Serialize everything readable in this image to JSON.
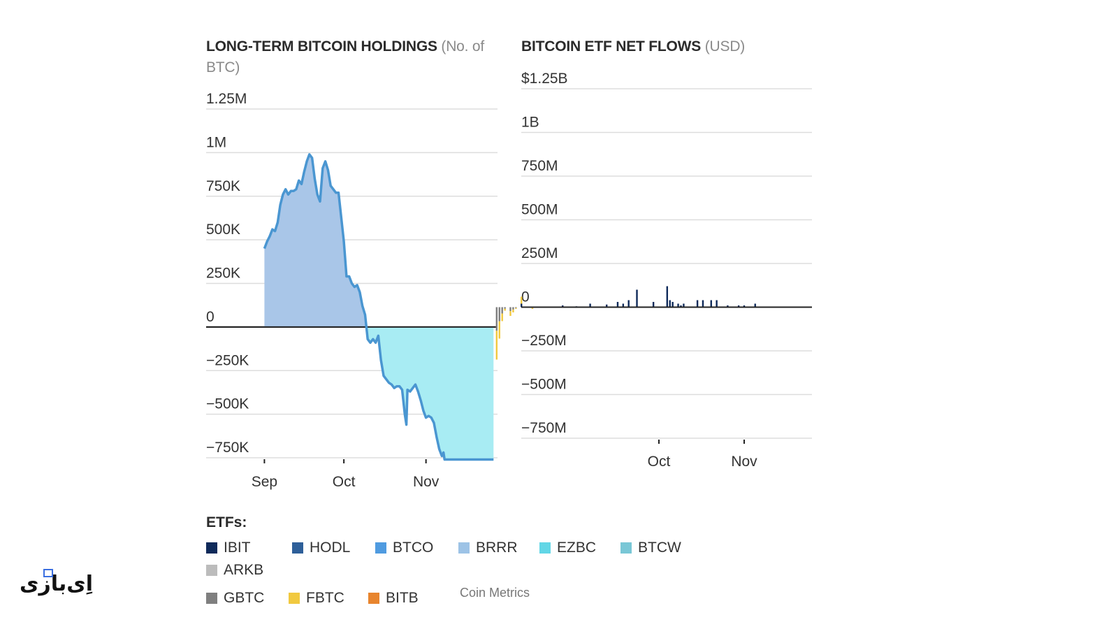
{
  "chart_data": [
    {
      "type": "area",
      "title": "LONG-TERM BITCOIN HOLDINGS",
      "unit": "(No. of BTC)",
      "y_ticks": [
        {
          "value": 1250000,
          "label": "1.25M"
        },
        {
          "value": 1000000,
          "label": "1M"
        },
        {
          "value": 750000,
          "label": "750K"
        },
        {
          "value": 500000,
          "label": "500K"
        },
        {
          "value": 250000,
          "label": "250K"
        },
        {
          "value": 0,
          "label": "0"
        },
        {
          "value": -250000,
          "label": "−250K"
        },
        {
          "value": -500000,
          "label": "−500K"
        },
        {
          "value": -750000,
          "label": "−750K"
        }
      ],
      "x_ticks": [
        {
          "day": 0,
          "label": "Sep"
        },
        {
          "day": 30,
          "label": "Oct"
        },
        {
          "day": 61,
          "label": "Nov"
        }
      ],
      "x_range": [
        -22,
        88
      ],
      "ylim": [
        -750000,
        1250000
      ],
      "positive_color": "#a9c6e8",
      "negative_color": "#a8ecf3",
      "line_color": "#4a96d1",
      "x": [
        0,
        1,
        2,
        3,
        4,
        5,
        6,
        7,
        8,
        9,
        10,
        11,
        12,
        13,
        14,
        15,
        16,
        17,
        18,
        19,
        20,
        21,
        22,
        23,
        24,
        25,
        26,
        27,
        28,
        29,
        30,
        31,
        32,
        33,
        34,
        35,
        36,
        37,
        38,
        39,
        40,
        41,
        42,
        43,
        44,
        45,
        46,
        47,
        48,
        49,
        50,
        51,
        52,
        53,
        53.6,
        54,
        55,
        56,
        57,
        58,
        59,
        60,
        61,
        62,
        63,
        64,
        65,
        66,
        66.5,
        67,
        67.6,
        68,
        69,
        70,
        71,
        72,
        73,
        74,
        75,
        76,
        77,
        78,
        79,
        80,
        81,
        82,
        83,
        84,
        84.3,
        84.8,
        85.5,
        86,
        86.5
      ],
      "y": [
        450000,
        490000,
        520000,
        560000,
        550000,
        600000,
        700000,
        760000,
        790000,
        760000,
        780000,
        780000,
        790000,
        840000,
        820000,
        890000,
        950000,
        990000,
        970000,
        850000,
        760000,
        720000,
        910000,
        950000,
        900000,
        810000,
        790000,
        770000,
        770000,
        630000,
        490000,
        290000,
        290000,
        250000,
        230000,
        240000,
        200000,
        120000,
        70000,
        -70000,
        -90000,
        -70000,
        -90000,
        -50000,
        -190000,
        -280000,
        -300000,
        -320000,
        -330000,
        -350000,
        -340000,
        -340000,
        -360000,
        -500000,
        -560000,
        -360000,
        -370000,
        -350000,
        -330000,
        -370000,
        -420000,
        -480000,
        -520000,
        -510000,
        -520000,
        -550000,
        -630000,
        -700000,
        -720000,
        -740000,
        -720000,
        -760000,
        -760000,
        -760000,
        -760000,
        -760000,
        -760000,
        -760000,
        -760000,
        -760000,
        -760000,
        -760000,
        -760000,
        -760000,
        -760000,
        -760000,
        -760000,
        -760000,
        -760000,
        -760000,
        -760000,
        -760000,
        -760000
      ]
    },
    {
      "type": "bar",
      "stacked": true,
      "title": "BITCOIN ETF NET FLOWS",
      "unit": "(USD)",
      "y_ticks": [
        {
          "value": 1250,
          "label": "$1.25B"
        },
        {
          "value": 1000,
          "label": "1B"
        },
        {
          "value": 750,
          "label": "750M"
        },
        {
          "value": 500,
          "label": "500M"
        },
        {
          "value": 250,
          "label": "250M"
        },
        {
          "value": 0,
          "label": "0"
        },
        {
          "value": -250,
          "label": "−250M"
        },
        {
          "value": -500,
          "label": "−500M"
        },
        {
          "value": -750,
          "label": "−750M"
        }
      ],
      "x_ticks": [
        {
          "day": 30,
          "label": "Oct"
        },
        {
          "day": 61,
          "label": "Nov"
        }
      ],
      "ylim": [
        -750,
        1250
      ],
      "series": [
        {
          "name": "IBIT",
          "color": "#0f2a5a"
        },
        {
          "name": "HODL",
          "color": "#2e5f99"
        },
        {
          "name": "BTCO",
          "color": "#4f9be0"
        },
        {
          "name": "BRRR",
          "color": "#9dc3e6"
        },
        {
          "name": "EZBC",
          "color": "#62d6e6"
        },
        {
          "name": "BTCW",
          "color": "#79c7d6"
        },
        {
          "name": "ARKB",
          "color": "#bcbcbc"
        },
        {
          "name": "GBTC",
          "color": "#7f7f7f"
        },
        {
          "name": "FBTC",
          "color": "#f1c940"
        },
        {
          "name": "BITB",
          "color": "#e8852e"
        }
      ],
      "bar_days": [
        -29,
        -28,
        -27,
        -26,
        -24,
        -23,
        -22,
        -21,
        -20,
        -18,
        -17,
        -16,
        -15,
        -14,
        -13,
        -12,
        -11,
        -10,
        -9,
        -8,
        -7,
        -6,
        -5,
        -4,
        -3,
        -2,
        -1,
        0,
        1,
        2,
        3,
        4,
        5,
        6,
        7,
        8,
        9,
        10,
        11,
        12,
        13,
        14,
        15,
        16,
        17,
        18,
        19,
        20,
        21,
        22,
        23,
        24,
        25,
        26,
        27,
        28,
        29,
        30,
        31,
        32,
        33,
        34,
        35,
        36,
        37,
        38,
        39,
        40,
        41,
        42,
        43,
        44,
        45,
        46,
        47,
        48,
        49,
        50,
        51,
        52,
        53,
        54,
        55,
        56,
        57,
        58,
        59,
        60,
        61,
        62,
        63,
        64,
        65,
        66,
        67,
        68,
        69,
        70,
        71,
        72,
        73,
        74,
        75,
        76,
        77,
        78,
        79,
        80,
        81,
        82,
        83,
        84,
        85
      ],
      "ibit": [
        0,
        0,
        0,
        -20,
        0,
        0,
        0,
        0,
        20,
        0,
        0,
        0,
        0,
        0,
        0,
        0,
        0,
        0,
        -10,
        0,
        0,
        0,
        10,
        0,
        0,
        0,
        0,
        5,
        0,
        0,
        0,
        0,
        20,
        0,
        0,
        0,
        0,
        0,
        15,
        0,
        0,
        0,
        30,
        0,
        20,
        0,
        40,
        0,
        0,
        100,
        0,
        0,
        0,
        0,
        0,
        30,
        0,
        0,
        0,
        0,
        120,
        40,
        30,
        0,
        20,
        10,
        20,
        0,
        0,
        0,
        0,
        40,
        0,
        40,
        0,
        0,
        40,
        0,
        40,
        0,
        0,
        0,
        10,
        0,
        0,
        0,
        10,
        0,
        10,
        0,
        0,
        0,
        20,
        0,
        0,
        0,
        0,
        0,
        0,
        0,
        0,
        0,
        0,
        0,
        0,
        0,
        0,
        0,
        0,
        0,
        0,
        0,
        0,
        0,
        0,
        0,
        0,
        0,
        0,
        0
      ],
      "pos_other": [
        0,
        0,
        0,
        10,
        0,
        0,
        0,
        0,
        40,
        0,
        0,
        0,
        0,
        0,
        0,
        0,
        0,
        0,
        0,
        0,
        0,
        0,
        0,
        0,
        0,
        0,
        0,
        0,
        0,
        0,
        0,
        0,
        0,
        0,
        0,
        0,
        0,
        0,
        0,
        0,
        0,
        0,
        0,
        0,
        0,
        0,
        0,
        0,
        0,
        0,
        0,
        0,
        0,
        0,
        0,
        0,
        0,
        0,
        0,
        0,
        0,
        0,
        0,
        0,
        0,
        0,
        0,
        0,
        0,
        0,
        0,
        0,
        0,
        0,
        0,
        0,
        0,
        0,
        0,
        0,
        0,
        0,
        0,
        0,
        0,
        0,
        0,
        0,
        0,
        0,
        0,
        0,
        0,
        0,
        0,
        0,
        0,
        0,
        0,
        0,
        0,
        0,
        0,
        0,
        0,
        0,
        0,
        0,
        0,
        0,
        0,
        0,
        0,
        0,
        0,
        0,
        0,
        0,
        0,
        0,
        0
      ],
      "neg": [
        -300,
        -180,
        -80,
        -20,
        -50,
        -30,
        -10,
        0,
        0,
        0,
        0,
        -10,
        0,
        0,
        0,
        0,
        0,
        0,
        0,
        0,
        0,
        0,
        0,
        0,
        0,
        0,
        0,
        0,
        0,
        0,
        0,
        0,
        0,
        0,
        0,
        0,
        0,
        0,
        0,
        0,
        0,
        0,
        0,
        0,
        0,
        0,
        0,
        0,
        0,
        0,
        0,
        0,
        0,
        0,
        0,
        0,
        0,
        0,
        0,
        0,
        0,
        0,
        0,
        0,
        0,
        0,
        0,
        0,
        0,
        0,
        0,
        0,
        0,
        0,
        0,
        0,
        0,
        0,
        0,
        0,
        0,
        0,
        0,
        0,
        0,
        0,
        0,
        0,
        0,
        0,
        0,
        0,
        0,
        0,
        0,
        0,
        0,
        0,
        0,
        0,
        0,
        0,
        0,
        0,
        0,
        0,
        0,
        0,
        0,
        0,
        0,
        0,
        0,
        0,
        0,
        0,
        0,
        0,
        0,
        0,
        0
      ]
    }
  ],
  "legend": {
    "title": "ETFs:",
    "items": [
      {
        "name": "IBIT",
        "color": "#0f2a5a"
      },
      {
        "name": "HODL",
        "color": "#2e5f99"
      },
      {
        "name": "BTCO",
        "color": "#4f9be0"
      },
      {
        "name": "BRRR",
        "color": "#9dc3e6"
      },
      {
        "name": "EZBC",
        "color": "#62d6e6"
      },
      {
        "name": "BTCW",
        "color": "#79c7d6"
      },
      {
        "name": "ARKB",
        "color": "#bcbcbc"
      },
      {
        "name": "GBTC",
        "color": "#7f7f7f"
      },
      {
        "name": "FBTC",
        "color": "#f1c940"
      },
      {
        "name": "BITB",
        "color": "#e8852e"
      }
    ]
  },
  "source": "Coin Metrics",
  "logo_text": "اِی‌بازی"
}
